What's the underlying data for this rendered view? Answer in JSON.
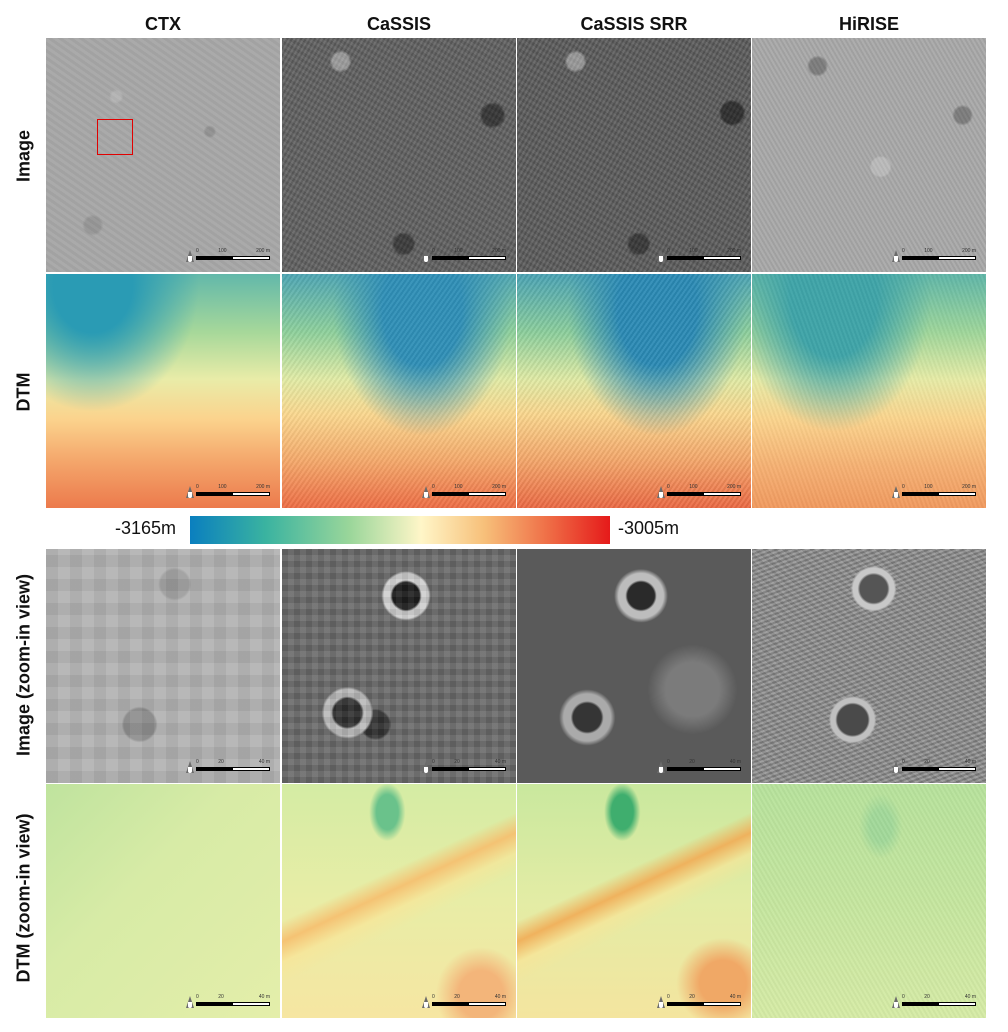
{
  "columns": [
    "CTX",
    "CaSSIS",
    "CaSSIS SRR",
    "HiRISE"
  ],
  "rows": [
    "Image",
    "DTM",
    "Image (zoom-in view)",
    "DTM (zoom-in view)"
  ],
  "colorbar": {
    "min_label": "-3165m",
    "max_label": "-3005m",
    "colors": [
      "#0a7fbf",
      "#3ab3a0",
      "#9ad69a",
      "#fff6c8",
      "#f7c07a",
      "#ef6f47",
      "#e51a1a"
    ]
  },
  "scale_overview": {
    "t0": "0",
    "t1": "100",
    "t2": "200 m"
  },
  "scale_zoom": {
    "t0": "0",
    "t1": "20",
    "t2": "40 m"
  }
}
